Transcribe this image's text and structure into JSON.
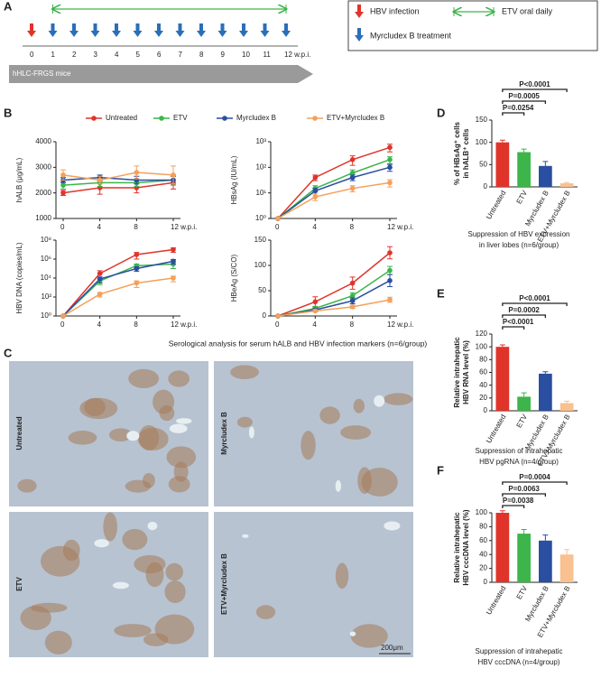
{
  "panel_labels": [
    "A",
    "B",
    "C",
    "D",
    "E",
    "F"
  ],
  "timeline": {
    "ticks": [
      0,
      1,
      2,
      3,
      4,
      5,
      6,
      7,
      8,
      9,
      10,
      11,
      {
        "value": 12,
        "label": "12 w.p.i."
      }
    ],
    "infection_week": 0,
    "treatment_start_week": 1,
    "treatment_end_week": 12,
    "mice_label": "hHLC-FRGS mice",
    "legend": {
      "infection": "HBV infection",
      "etv": "ETV oral daily",
      "myrcludex": "Myrcludex B treatment"
    }
  },
  "serology_caption": "Serological analysis for serum hALB and HBV infection markers (n=6/group)",
  "histology": {
    "labels": [
      "Untreated",
      "Myrcludex B",
      "ETV",
      "ETV+Myrcludex B"
    ],
    "scale_bar": "200μm"
  },
  "chart_data": [
    {
      "type": "line",
      "ylabel": "hALB (μg/mL)",
      "x": [
        0,
        4,
        8,
        12
      ],
      "xlim": [
        0,
        12
      ],
      "xticks": [
        0,
        4,
        8,
        {
          "value": 12,
          "label": "12 w.p.i."
        }
      ],
      "ylim": [
        1000,
        4000
      ],
      "yticks": [
        1000,
        2000,
        3000,
        4000
      ],
      "log": false,
      "series": [
        {
          "name": "Untreated",
          "color": "#e0342b",
          "values": [
            2000,
            2200,
            2200,
            2400
          ],
          "errors": [
            100,
            250,
            200,
            250
          ]
        },
        {
          "name": "ETV",
          "color": "#3cb54a",
          "values": [
            2300,
            2400,
            2400,
            2500
          ],
          "errors": [
            150,
            150,
            150,
            200
          ]
        },
        {
          "name": "Myrcludex B",
          "color": "#2a4ea0",
          "values": [
            2500,
            2600,
            2500,
            2500
          ],
          "errors": [
            100,
            100,
            150,
            150
          ]
        },
        {
          "name": "ETV+Myrcludex B",
          "color": "#f5a05a",
          "values": [
            2700,
            2500,
            2800,
            2700
          ],
          "errors": [
            200,
            150,
            250,
            350
          ]
        }
      ]
    },
    {
      "type": "line",
      "ylabel": "HBsAg (IU/mL)",
      "x": [
        0,
        4,
        8,
        12
      ],
      "xlim": [
        0,
        12
      ],
      "xticks": [
        0,
        4,
        8,
        {
          "value": 12,
          "label": "12 w.p.i."
        }
      ],
      "ylim": [
        1,
        1000
      ],
      "log": true,
      "yticks": [
        {
          "value": 1,
          "label": "10⁰"
        },
        {
          "value": 10,
          "label": "10¹"
        },
        {
          "value": 100,
          "label": "10²"
        },
        {
          "value": 1000,
          "label": "10³"
        }
      ],
      "series": [
        {
          "name": "Untreated",
          "color": "#e0342b",
          "values": [
            1,
            40,
            200,
            600
          ],
          "errors": [
            0,
            10,
            80,
            200
          ]
        },
        {
          "name": "ETV",
          "color": "#3cb54a",
          "values": [
            1,
            15,
            60,
            200
          ],
          "errors": [
            0,
            4,
            20,
            60
          ]
        },
        {
          "name": "Myrcludex B",
          "color": "#2a4ea0",
          "values": [
            1,
            12,
            40,
            100
          ],
          "errors": [
            0,
            3,
            10,
            30
          ]
        },
        {
          "name": "ETV+Myrcludex B",
          "color": "#f5a05a",
          "values": [
            1,
            7,
            15,
            25
          ],
          "errors": [
            0,
            2,
            4,
            8
          ]
        }
      ]
    },
    {
      "type": "line",
      "ylabel": "HBV DNA (copies/mL)",
      "x": [
        0,
        4,
        8,
        12
      ],
      "xlim": [
        0,
        12
      ],
      "xticks": [
        0,
        4,
        8,
        {
          "value": 12,
          "label": "12 w.p.i."
        }
      ],
      "ylim": [
        1,
        100000000
      ],
      "log": true,
      "yticks": [
        {
          "value": 1,
          "label": "10⁰"
        },
        {
          "value": 100,
          "label": "10²"
        },
        {
          "value": 10000,
          "label": "10⁴"
        },
        {
          "value": 1000000,
          "label": "10⁶"
        },
        {
          "value": 100000000,
          "label": "10⁸"
        }
      ],
      "series": [
        {
          "name": "Untreated",
          "color": "#e0342b",
          "values": [
            1,
            30000,
            3000000,
            10000000
          ],
          "errors": [
            0,
            30000,
            2000000,
            5000000
          ]
        },
        {
          "name": "ETV",
          "color": "#3cb54a",
          "values": [
            1,
            5000,
            200000,
            300000
          ],
          "errors": [
            0,
            3000,
            100000,
            200000
          ]
        },
        {
          "name": "Myrcludex B",
          "color": "#2a4ea0",
          "values": [
            1,
            8000,
            100000,
            600000
          ],
          "errors": [
            0,
            5000,
            50000,
            300000
          ]
        },
        {
          "name": "ETV+Myrcludex B",
          "color": "#f5a05a",
          "values": [
            1,
            200,
            3000,
            10000
          ],
          "errors": [
            0,
            100,
            2000,
            6000
          ]
        }
      ]
    },
    {
      "type": "line",
      "ylabel": "HBeAg (S/CO)",
      "x": [
        0,
        4,
        8,
        12
      ],
      "xlim": [
        0,
        12
      ],
      "xticks": [
        0,
        4,
        8,
        {
          "value": 12,
          "label": "12 w.p.i."
        }
      ],
      "ylim": [
        0,
        150
      ],
      "yticks": [
        0,
        50,
        100,
        150
      ],
      "log": false,
      "series": [
        {
          "name": "Untreated",
          "color": "#e0342b",
          "values": [
            0,
            28,
            65,
            125
          ],
          "errors": [
            0,
            10,
            12,
            12
          ]
        },
        {
          "name": "ETV",
          "color": "#3cb54a",
          "values": [
            0,
            15,
            40,
            90
          ],
          "errors": [
            0,
            4,
            6,
            8
          ]
        },
        {
          "name": "Myrcludex B",
          "color": "#2a4ea0",
          "values": [
            0,
            12,
            30,
            70
          ],
          "errors": [
            0,
            3,
            6,
            12
          ]
        },
        {
          "name": "ETV+Myrcludex B",
          "color": "#f5a05a",
          "values": [
            0,
            10,
            18,
            32
          ],
          "errors": [
            0,
            2,
            3,
            5
          ]
        }
      ]
    },
    {
      "type": "bar",
      "ylabel": [
        "% of HBsAg⁺ cells",
        "in hALB⁺ cells"
      ],
      "categories": [
        "Untreated",
        "ETV",
        "Myrcludex B",
        "ETV+Myrcludex B"
      ],
      "values": [
        100,
        78,
        47,
        8
      ],
      "errors": [
        5,
        7,
        10,
        2
      ],
      "colors": [
        "#e0342b",
        "#3cb54a",
        "#2a4ea0",
        "#f9c090"
      ],
      "ylim": [
        0,
        150
      ],
      "yticks": [
        0,
        50,
        100,
        150
      ],
      "comparisons": [
        "P=0.0254",
        "P=0.0005",
        "P<0.0001"
      ],
      "caption": [
        "Suppression of HBV expression",
        "in liver lobes (n=6/group)"
      ]
    },
    {
      "type": "bar",
      "ylabel": [
        "Relative intrahepatic",
        "HBV RNA level (%)"
      ],
      "categories": [
        "Untreated",
        "ETV",
        "Myrcludex B",
        "ETV+Myrcludex B"
      ],
      "values": [
        100,
        22,
        58,
        12
      ],
      "errors": [
        3,
        6,
        3,
        3
      ],
      "colors": [
        "#e0342b",
        "#3cb54a",
        "#2a4ea0",
        "#f9c090"
      ],
      "ylim": [
        0,
        120
      ],
      "yticks": [
        0,
        20,
        40,
        60,
        80,
        100,
        120
      ],
      "comparisons": [
        "P<0.0001",
        "P=0.0002",
        "P<0.0001"
      ],
      "caption": [
        "Suppression of intrahepatic",
        "HBV pgRNA (n=4/group)"
      ]
    },
    {
      "type": "bar",
      "ylabel": [
        "Relative intrahepatic",
        "HBV cccDNA level (%)"
      ],
      "categories": [
        "Untreated",
        "ETV",
        "Myrcludex B",
        "ETV+Myrcludex B"
      ],
      "values": [
        100,
        70,
        60,
        40
      ],
      "errors": [
        3,
        6,
        8,
        7
      ],
      "colors": [
        "#e0342b",
        "#3cb54a",
        "#2a4ea0",
        "#f9c090"
      ],
      "ylim": [
        0,
        100
      ],
      "yticks": [
        0,
        20,
        40,
        60,
        80,
        100
      ],
      "comparisons": [
        "P=0.0038",
        "P=0.0063",
        "P=0.0004"
      ],
      "caption": [
        "Suppression of intrahepatic",
        "HBV cccDNA (n=4/group)"
      ]
    }
  ]
}
